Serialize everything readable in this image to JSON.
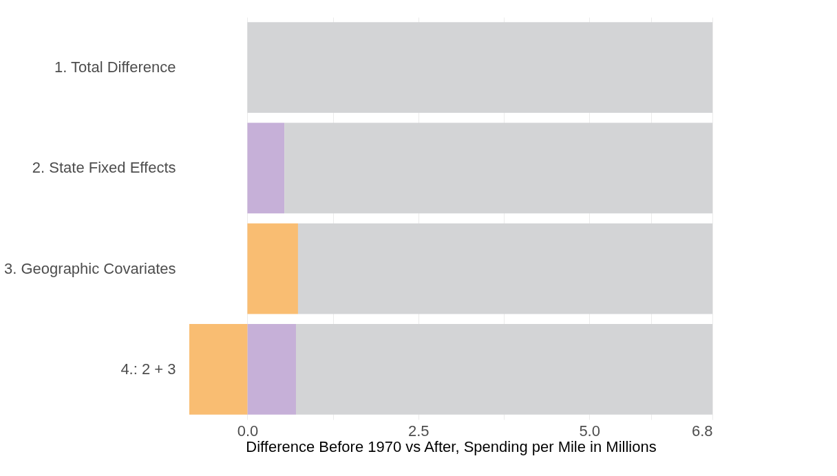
{
  "chart_data": {
    "type": "bar",
    "orientation": "horizontal",
    "stacked": true,
    "categories": [
      "1. Total Difference",
      "2. State Fixed Effects",
      "3. Geographic Covariates",
      "4.: 2 + 3"
    ],
    "series": [
      {
        "color": "#c6b0d8",
        "values": [
          null,
          0.54,
          null,
          0.71
        ]
      },
      {
        "color": "#f9bd72",
        "values": [
          null,
          null,
          0.74,
          -0.85
        ]
      },
      {
        "color": "#d3d4d6",
        "values": [
          6.8,
          6.26,
          6.06,
          6.09
        ]
      }
    ],
    "xlabel": "Difference Before 1970 vs After, Spending per Mile in Millions",
    "xlim": [
      -0.85,
      6.8
    ],
    "xticks": [
      {
        "value": 0,
        "label": "0.0"
      },
      {
        "value": 1.25,
        "label": null
      },
      {
        "value": 2.5,
        "label": "2.5"
      },
      {
        "value": 3.75,
        "label": null
      },
      {
        "value": 5.0,
        "label": "5.0"
      },
      {
        "value": 5.9,
        "label": null
      },
      {
        "value": 6.8,
        "label": "6.8"
      }
    ],
    "grid": "x",
    "legend": false
  }
}
